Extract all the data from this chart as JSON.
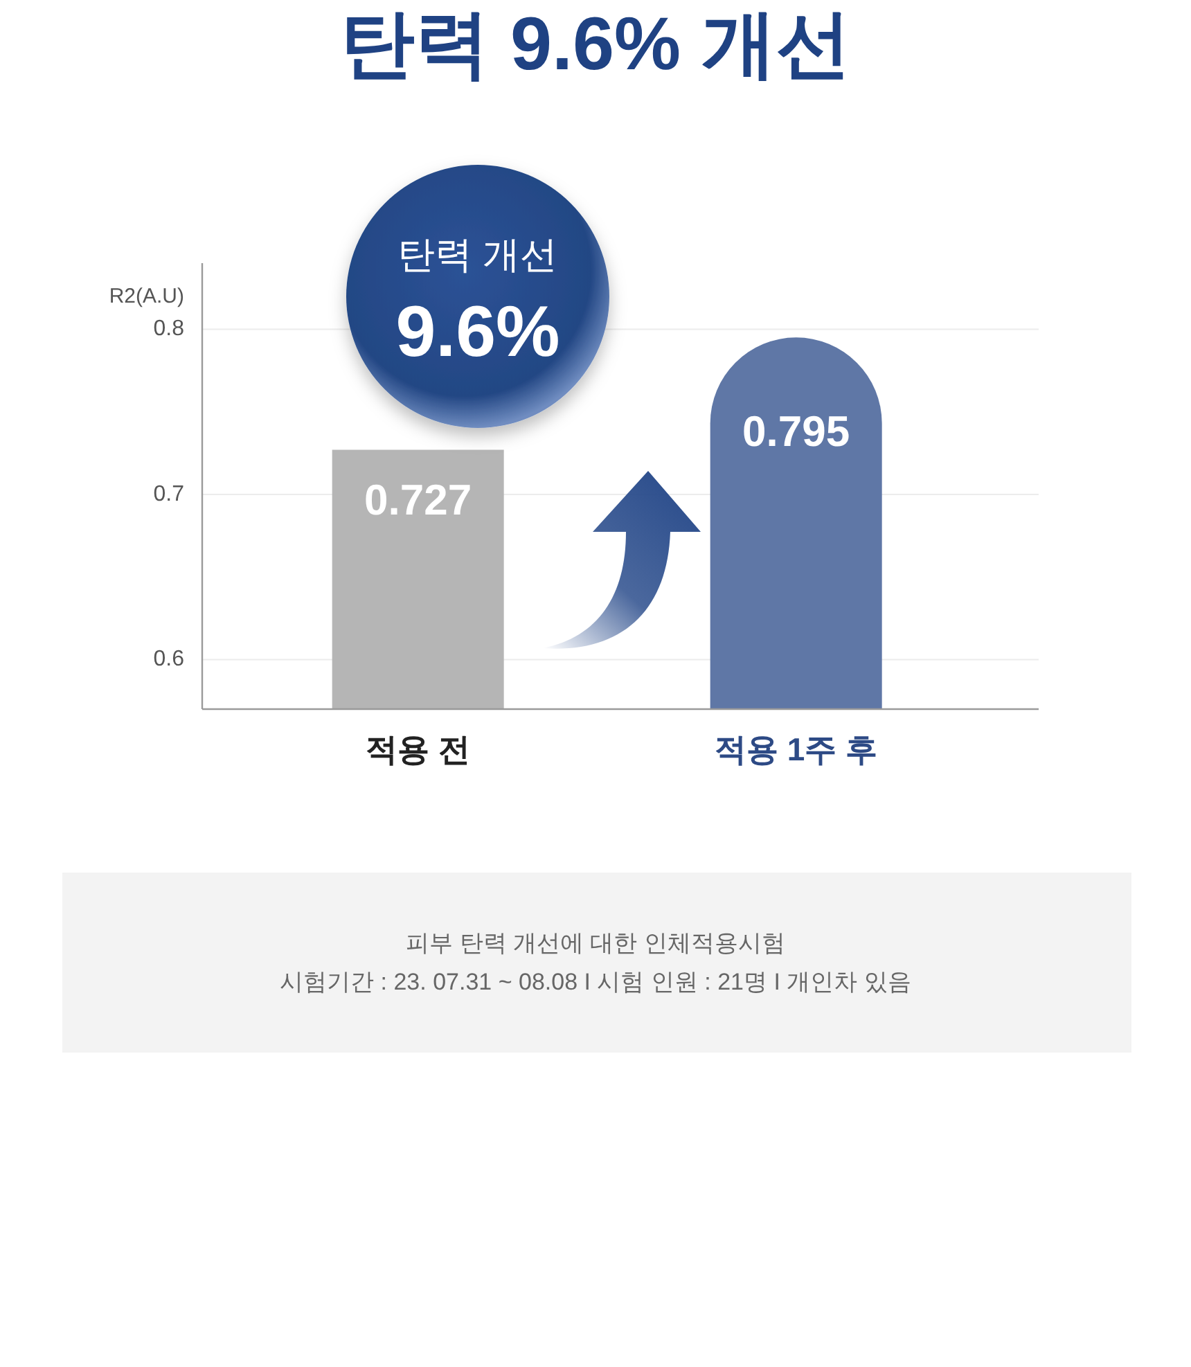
{
  "chart_data": {
    "type": "bar",
    "title": "탄력 9.6% 개선",
    "ylabel": "R2(A.U)",
    "categories": [
      "적용 전",
      "적용 1주 후"
    ],
    "values": [
      0.727,
      0.795
    ],
    "colors": [
      "#b5b5b5",
      "#5f77a6"
    ],
    "ylim": [
      0.57,
      0.84
    ],
    "yticks": [
      0.6,
      0.7,
      0.8
    ],
    "grid": "y",
    "data_labels": true,
    "annotations": [
      "탄력 개선",
      "9.6%",
      "피부 탄력 개선에 대한 인체적용시험",
      "시험기간 : 23. 07.31 ~ 08.08 I 시험 인원 : 21명 I 개인차 있음"
    ]
  }
}
